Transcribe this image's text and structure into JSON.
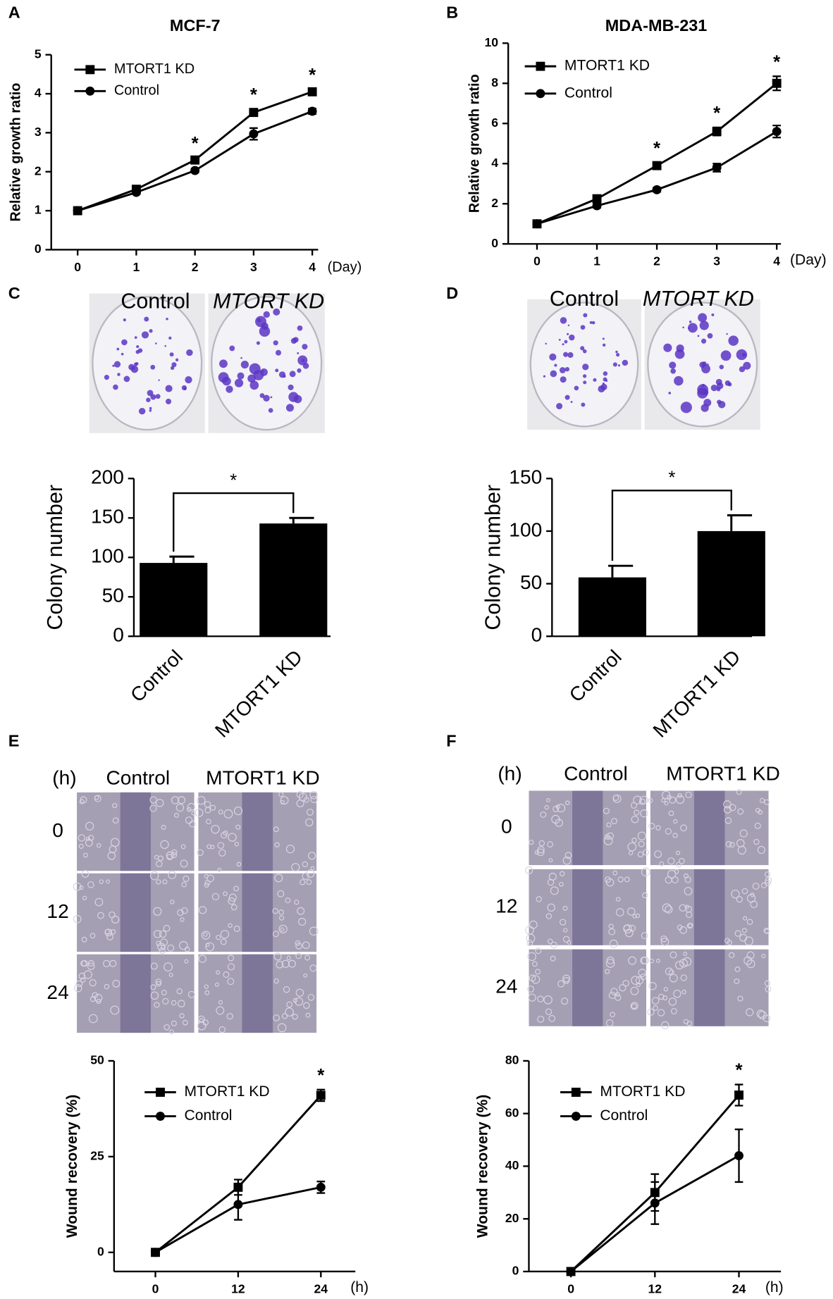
{
  "chart_data": [
    {
      "type": "line",
      "panel": "A",
      "title": "MCF-7",
      "ylabel": "Relative growth ratio",
      "xlabel": "(Day)",
      "x": [
        0,
        1,
        2,
        3,
        4
      ],
      "xlim": [
        -0.45,
        4.1
      ],
      "ylim": [
        0,
        5
      ],
      "yticks": [
        0,
        1,
        2,
        3,
        4,
        5
      ],
      "series": [
        {
          "name": "MTORT1 KD",
          "color": "#000000",
          "marker": "square",
          "values": [
            1,
            1.55,
            2.3,
            3.52,
            4.05
          ],
          "errors": [
            0.03,
            0.05,
            0.06,
            0.08,
            0.06
          ]
        },
        {
          "name": "Control",
          "color": "#000000",
          "marker": "circle",
          "values": [
            1,
            1.47,
            2.03,
            2.97,
            3.55
          ],
          "errors": [
            0.03,
            0.05,
            0.05,
            0.15,
            0.07
          ]
        }
      ],
      "annotations": [
        {
          "x": 2,
          "text": "*"
        },
        {
          "x": 3,
          "text": "*"
        },
        {
          "x": 4,
          "text": "*"
        }
      ]
    },
    {
      "type": "line",
      "panel": "B",
      "title": "MDA-MB-231",
      "ylabel": "Relative growth ratio",
      "xlabel": "(Day)",
      "x": [
        0,
        1,
        2,
        3,
        4
      ],
      "xlim": [
        -0.48,
        4.07
      ],
      "ylim": [
        0,
        10
      ],
      "yticks": [
        0,
        2,
        4,
        6,
        8,
        10
      ],
      "series": [
        {
          "name": "MTORT1 KD",
          "color": "#000000",
          "marker": "square",
          "values": [
            1,
            2.25,
            3.9,
            5.6,
            8.0
          ],
          "errors": [
            0.05,
            0.15,
            0.15,
            0.2,
            0.35
          ]
        },
        {
          "name": "Control",
          "color": "#000000",
          "marker": "circle",
          "values": [
            1,
            1.9,
            2.7,
            3.8,
            5.6
          ],
          "errors": [
            0.05,
            0.1,
            0.1,
            0.2,
            0.3
          ]
        }
      ],
      "annotations": [
        {
          "x": 2,
          "text": "*"
        },
        {
          "x": 3,
          "text": "*"
        },
        {
          "x": 4,
          "text": "*"
        }
      ]
    },
    {
      "type": "bar",
      "panel": "C",
      "image_labels": [
        "Control",
        "MTORT KD"
      ],
      "ylabel": "Colony number",
      "categories": [
        "Control",
        "MTORT1 KD"
      ],
      "values": [
        93,
        143
      ],
      "errors": [
        8,
        7
      ],
      "color": "#000000",
      "ylim": [
        0,
        200
      ],
      "yticks": [
        0,
        50,
        100,
        150,
        200
      ],
      "annotations": [
        {
          "text": "*"
        }
      ]
    },
    {
      "type": "bar",
      "panel": "D",
      "image_labels": [
        "Control",
        "MTORT KD"
      ],
      "ylabel": "Colony number",
      "categories": [
        "Control",
        "MTORT1 KD"
      ],
      "values": [
        56,
        100
      ],
      "errors": [
        11,
        15
      ],
      "color": "#000000",
      "ylim": [
        0,
        150
      ],
      "yticks": [
        0,
        50,
        100,
        150
      ],
      "annotations": [
        {
          "text": "*"
        }
      ]
    },
    {
      "type": "line",
      "panel": "E",
      "image_header": "(h)",
      "image_labels": [
        "Control",
        "MTORT1 KD"
      ],
      "image_rows": [
        "0",
        "12",
        "24"
      ],
      "ylabel": "Wound recovery (%)",
      "xlabel": "(h)",
      "x": [
        0,
        12,
        24
      ],
      "xlim": [
        -6,
        29
      ],
      "ylim": [
        -5,
        50
      ],
      "yticks": [
        0,
        25,
        50
      ],
      "series": [
        {
          "name": "MTORT1 KD",
          "color": "#000000",
          "marker": "square",
          "values": [
            0,
            17,
            41
          ],
          "errors": [
            0.3,
            2,
            1.5
          ]
        },
        {
          "name": "Control",
          "color": "#000000",
          "marker": "circle",
          "values": [
            0,
            12.5,
            17
          ],
          "errors": [
            0.3,
            4,
            1.5
          ]
        }
      ],
      "annotations": [
        {
          "x": 24,
          "text": "*"
        }
      ]
    },
    {
      "type": "line",
      "panel": "F",
      "image_header": "(h)",
      "image_labels": [
        "Control",
        "MTORT1 KD"
      ],
      "image_rows": [
        "0",
        "12",
        "24"
      ],
      "ylabel": "Wound recovery (%)",
      "xlabel": "(h)",
      "x": [
        0,
        12,
        24
      ],
      "xlim": [
        -6,
        30
      ],
      "ylim": [
        0,
        80
      ],
      "yticks": [
        0,
        20,
        40,
        60,
        80
      ],
      "series": [
        {
          "name": "MTORT1 KD",
          "color": "#000000",
          "marker": "square",
          "values": [
            0,
            30,
            67
          ],
          "errors": [
            0.5,
            7,
            4
          ]
        },
        {
          "name": "Control",
          "color": "#000000",
          "marker": "circle",
          "values": [
            0,
            26,
            44
          ],
          "errors": [
            0.5,
            8,
            10
          ]
        }
      ],
      "annotations": [
        {
          "x": 24,
          "text": "*"
        }
      ]
    }
  ]
}
